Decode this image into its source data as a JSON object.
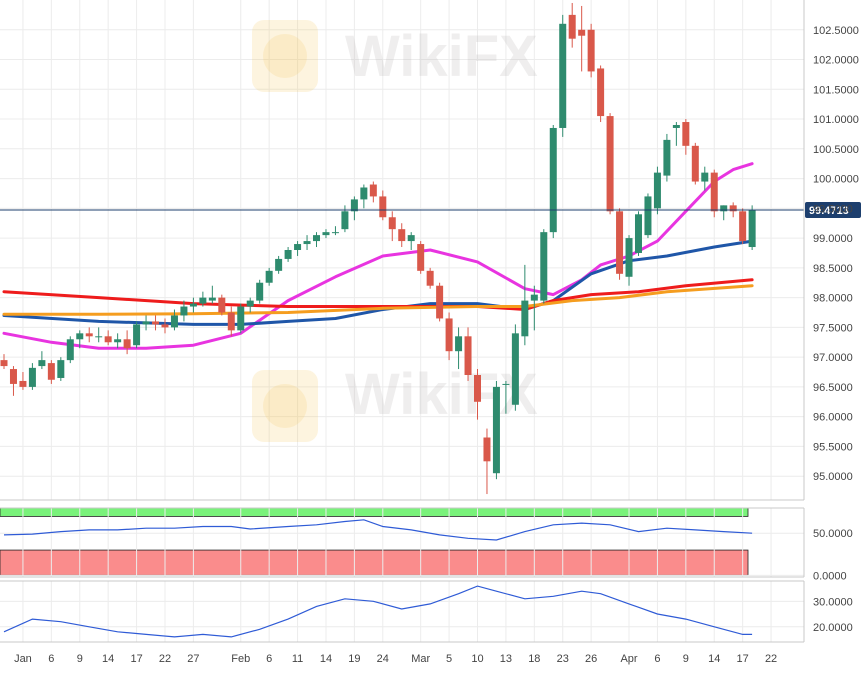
{
  "watermark": "WikiFX",
  "colors": {
    "bull": "#2e8b6e",
    "bear": "#d9584a",
    "sma20": "#e834e0",
    "sma50": "#1f56a8",
    "sma100": "#ee1c1c",
    "sma200": "#f59d1f",
    "rsi": "#2f5bd6",
    "adx": "#2f5bd6",
    "overbought_zone": "#79f27a",
    "oversold_zone": "#fa8c8c",
    "last_price_bg": "#1d3f6e",
    "last_price_line": "#1d3f6e"
  },
  "chart_data": [
    {
      "type": "candlestick",
      "name": "price",
      "last_price": "99.4713",
      "ylim": [
        94.6,
        103.0
      ],
      "y_ticks": [
        "95.0000",
        "95.5000",
        "96.0000",
        "96.5000",
        "97.0000",
        "97.5000",
        "98.0000",
        "98.5000",
        "99.0000",
        "99.5000",
        "100.0000",
        "100.5000",
        "101.0000",
        "101.5000",
        "102.0000",
        "102.5000"
      ],
      "x_ticks": [
        "Jan",
        "6",
        "9",
        "14",
        "17",
        "22",
        "27",
        "Feb",
        "6",
        "11",
        "14",
        "19",
        "24",
        "Mar",
        "5",
        "10",
        "13",
        "18",
        "23",
        "26",
        "Apr",
        "6",
        "9",
        "14",
        "17",
        "22"
      ],
      "candles": [
        [
          0,
          96.95,
          97.05,
          96.8,
          96.85
        ],
        [
          1,
          96.8,
          96.85,
          96.35,
          96.55
        ],
        [
          2,
          96.6,
          96.75,
          96.45,
          96.5
        ],
        [
          3,
          96.5,
          96.9,
          96.45,
          96.82
        ],
        [
          4,
          96.85,
          97.1,
          96.8,
          96.95
        ],
        [
          5,
          96.9,
          96.95,
          96.55,
          96.62
        ],
        [
          6,
          96.65,
          97.0,
          96.6,
          96.95
        ],
        [
          7,
          96.95,
          97.35,
          96.9,
          97.3
        ],
        [
          8,
          97.3,
          97.45,
          97.15,
          97.4
        ],
        [
          9,
          97.4,
          97.5,
          97.25,
          97.35
        ],
        [
          10,
          97.35,
          97.5,
          97.25,
          97.35
        ],
        [
          11,
          97.35,
          97.45,
          97.2,
          97.25
        ],
        [
          12,
          97.25,
          97.4,
          97.15,
          97.3
        ],
        [
          13,
          97.3,
          97.45,
          97.05,
          97.15
        ],
        [
          14,
          97.2,
          97.6,
          97.15,
          97.55
        ],
        [
          15,
          97.55,
          97.7,
          97.45,
          97.6
        ],
        [
          16,
          97.6,
          97.7,
          97.45,
          97.55
        ],
        [
          17,
          97.55,
          97.65,
          97.4,
          97.5
        ],
        [
          18,
          97.5,
          97.8,
          97.45,
          97.7
        ],
        [
          19,
          97.7,
          97.95,
          97.6,
          97.85
        ],
        [
          20,
          97.85,
          98.0,
          97.75,
          97.9
        ],
        [
          21,
          97.9,
          98.1,
          97.85,
          98.0
        ],
        [
          22,
          97.95,
          98.2,
          97.9,
          98.0
        ],
        [
          23,
          98.0,
          98.05,
          97.7,
          97.75
        ],
        [
          24,
          97.75,
          97.85,
          97.35,
          97.45
        ],
        [
          25,
          97.45,
          97.9,
          97.4,
          97.85
        ],
        [
          26,
          97.85,
          98.0,
          97.75,
          97.95
        ],
        [
          27,
          97.95,
          98.3,
          97.9,
          98.25
        ],
        [
          28,
          98.25,
          98.5,
          98.2,
          98.45
        ],
        [
          29,
          98.45,
          98.7,
          98.4,
          98.65
        ],
        [
          30,
          98.65,
          98.85,
          98.6,
          98.8
        ],
        [
          31,
          98.8,
          98.95,
          98.7,
          98.9
        ],
        [
          32,
          98.9,
          99.05,
          98.8,
          98.95
        ],
        [
          33,
          98.95,
          99.1,
          98.85,
          99.05
        ],
        [
          34,
          99.05,
          99.15,
          99.0,
          99.1
        ],
        [
          35,
          99.1,
          99.2,
          99.05,
          99.1
        ],
        [
          36,
          99.15,
          99.55,
          99.1,
          99.45
        ],
        [
          37,
          99.45,
          99.7,
          99.3,
          99.65
        ],
        [
          38,
          99.65,
          99.9,
          99.5,
          99.85
        ],
        [
          39,
          99.9,
          99.95,
          99.6,
          99.7
        ],
        [
          40,
          99.7,
          99.8,
          99.3,
          99.35
        ],
        [
          41,
          99.35,
          99.45,
          98.95,
          99.15
        ],
        [
          42,
          99.15,
          99.25,
          98.85,
          98.95
        ],
        [
          43,
          98.95,
          99.1,
          98.8,
          99.05
        ],
        [
          44,
          98.9,
          98.95,
          98.4,
          98.45
        ],
        [
          45,
          98.45,
          98.5,
          98.15,
          98.2
        ],
        [
          46,
          98.2,
          98.25,
          97.6,
          97.65
        ],
        [
          47,
          97.65,
          97.75,
          96.95,
          97.1
        ],
        [
          48,
          97.1,
          97.5,
          96.8,
          97.35
        ],
        [
          49,
          97.35,
          97.5,
          96.6,
          96.7
        ],
        [
          50,
          96.7,
          96.8,
          95.95,
          96.25
        ],
        [
          51,
          95.65,
          95.8,
          94.7,
          95.25
        ],
        [
          52,
          95.05,
          96.6,
          94.95,
          96.5
        ],
        [
          53,
          96.55,
          96.6,
          96.05,
          96.55
        ],
        [
          54,
          96.2,
          97.55,
          96.1,
          97.4
        ],
        [
          55,
          97.35,
          98.55,
          97.2,
          97.95
        ],
        [
          56,
          97.95,
          98.2,
          97.45,
          98.05
        ],
        [
          57,
          97.95,
          99.15,
          97.9,
          99.1
        ],
        [
          58,
          99.1,
          100.9,
          99.0,
          100.85
        ],
        [
          59,
          100.85,
          102.75,
          100.7,
          102.6
        ],
        [
          60,
          102.75,
          102.95,
          102.2,
          102.35
        ],
        [
          61,
          102.5,
          102.9,
          101.8,
          102.4
        ],
        [
          62,
          102.5,
          102.6,
          101.7,
          101.8
        ],
        [
          63,
          101.85,
          101.9,
          100.95,
          101.05
        ],
        [
          64,
          101.05,
          101.1,
          99.4,
          99.45
        ],
        [
          65,
          99.45,
          99.5,
          98.3,
          98.4
        ],
        [
          66,
          98.35,
          99.05,
          98.2,
          99.0
        ],
        [
          67,
          98.75,
          99.45,
          98.7,
          99.4
        ],
        [
          68,
          99.05,
          99.75,
          99.0,
          99.7
        ],
        [
          69,
          99.5,
          100.2,
          99.4,
          100.1
        ],
        [
          70,
          100.05,
          100.75,
          99.95,
          100.65
        ],
        [
          71,
          100.85,
          100.95,
          100.55,
          100.9
        ],
        [
          72,
          100.95,
          101.0,
          100.4,
          100.55
        ],
        [
          73,
          100.55,
          100.6,
          99.9,
          99.95
        ],
        [
          74,
          99.95,
          100.2,
          99.8,
          100.1
        ],
        [
          75,
          100.1,
          100.15,
          99.35,
          99.45
        ],
        [
          76,
          99.45,
          99.55,
          99.3,
          99.55
        ],
        [
          77,
          99.55,
          99.6,
          99.35,
          99.45
        ],
        [
          78,
          99.45,
          99.5,
          98.9,
          98.95
        ],
        [
          79,
          98.85,
          99.55,
          98.8,
          99.47
        ]
      ],
      "series": [
        {
          "name": "SMA 20",
          "color_key": "sma20",
          "points": [
            [
              0,
              97.4
            ],
            [
              5,
              97.25
            ],
            [
              10,
              97.15
            ],
            [
              15,
              97.15
            ],
            [
              20,
              97.2
            ],
            [
              25,
              97.4
            ],
            [
              30,
              97.95
            ],
            [
              35,
              98.35
            ],
            [
              40,
              98.7
            ],
            [
              45,
              98.8
            ],
            [
              50,
              98.6
            ],
            [
              55,
              98.15
            ],
            [
              58,
              98.05
            ],
            [
              61,
              98.3
            ],
            [
              63,
              98.55
            ],
            [
              66,
              98.7
            ],
            [
              69,
              98.95
            ],
            [
              72,
              99.45
            ],
            [
              75,
              99.95
            ],
            [
              77,
              100.15
            ],
            [
              79,
              100.25
            ]
          ]
        },
        {
          "name": "SMA 50",
          "color_key": "sma50",
          "points": [
            [
              0,
              97.7
            ],
            [
              10,
              97.6
            ],
            [
              20,
              97.55
            ],
            [
              25,
              97.55
            ],
            [
              30,
              97.6
            ],
            [
              35,
              97.65
            ],
            [
              40,
              97.8
            ],
            [
              45,
              97.9
            ],
            [
              50,
              97.9
            ],
            [
              55,
              97.8
            ],
            [
              58,
              97.95
            ],
            [
              62,
              98.4
            ],
            [
              66,
              98.62
            ],
            [
              70,
              98.7
            ],
            [
              75,
              98.85
            ],
            [
              79,
              98.95
            ]
          ]
        },
        {
          "name": "SMA 100",
          "color_key": "sma100",
          "points": [
            [
              0,
              98.1
            ],
            [
              10,
              98.0
            ],
            [
              20,
              97.9
            ],
            [
              30,
              97.85
            ],
            [
              40,
              97.85
            ],
            [
              50,
              97.85
            ],
            [
              55,
              97.8
            ],
            [
              58,
              97.95
            ],
            [
              62,
              98.05
            ],
            [
              67,
              98.1
            ],
            [
              72,
              98.2
            ],
            [
              79,
              98.3
            ]
          ]
        },
        {
          "name": "SMA 200",
          "color_key": "sma200",
          "points": [
            [
              0,
              97.72
            ],
            [
              10,
              97.72
            ],
            [
              20,
              97.73
            ],
            [
              30,
              97.75
            ],
            [
              40,
              97.82
            ],
            [
              50,
              97.85
            ],
            [
              55,
              97.85
            ],
            [
              60,
              97.95
            ],
            [
              65,
              98.0
            ],
            [
              70,
              98.1
            ],
            [
              79,
              98.2
            ]
          ]
        }
      ]
    },
    {
      "type": "line",
      "name": "RSI",
      "ylim": [
        -2,
        80
      ],
      "y_ticks": [
        "0.0000",
        "50.0000"
      ],
      "zones": [
        {
          "from": 70,
          "to": 80,
          "color_key": "overbought_zone"
        },
        {
          "from": 0,
          "to": 30,
          "color_key": "oversold_zone"
        }
      ],
      "series": [
        {
          "color_key": "rsi",
          "points": [
            [
              0,
              48
            ],
            [
              3,
              49
            ],
            [
              6,
              52
            ],
            [
              9,
              54
            ],
            [
              12,
              54
            ],
            [
              15,
              56
            ],
            [
              18,
              56
            ],
            [
              21,
              58
            ],
            [
              24,
              58
            ],
            [
              26,
              55
            ],
            [
              30,
              58
            ],
            [
              33,
              60
            ],
            [
              36,
              64
            ],
            [
              38,
              66
            ],
            [
              40,
              58
            ],
            [
              43,
              54
            ],
            [
              46,
              48
            ],
            [
              49,
              44
            ],
            [
              52,
              42
            ],
            [
              55,
              52
            ],
            [
              58,
              60
            ],
            [
              61,
              62
            ],
            [
              64,
              60
            ],
            [
              67,
              52
            ],
            [
              70,
              56
            ],
            [
              73,
              54
            ],
            [
              76,
              52
            ],
            [
              79,
              50
            ]
          ]
        }
      ]
    },
    {
      "type": "line",
      "name": "ADX",
      "ylim": [
        14,
        38
      ],
      "y_ticks": [
        "20.0000",
        "30.0000"
      ],
      "series": [
        {
          "color_key": "adx",
          "points": [
            [
              0,
              18
            ],
            [
              3,
              23
            ],
            [
              6,
              22
            ],
            [
              9,
              20
            ],
            [
              12,
              18
            ],
            [
              15,
              17
            ],
            [
              18,
              16
            ],
            [
              21,
              17
            ],
            [
              24,
              16
            ],
            [
              27,
              19
            ],
            [
              30,
              23
            ],
            [
              33,
              28
            ],
            [
              36,
              31
            ],
            [
              39,
              30
            ],
            [
              42,
              27
            ],
            [
              45,
              29
            ],
            [
              48,
              33
            ],
            [
              50,
              36
            ],
            [
              52,
              34
            ],
            [
              55,
              31
            ],
            [
              58,
              32
            ],
            [
              61,
              34
            ],
            [
              63,
              33
            ],
            [
              66,
              29
            ],
            [
              69,
              25
            ],
            [
              72,
              23
            ],
            [
              75,
              20
            ],
            [
              78,
              17
            ],
            [
              79,
              17
            ]
          ]
        }
      ]
    }
  ]
}
